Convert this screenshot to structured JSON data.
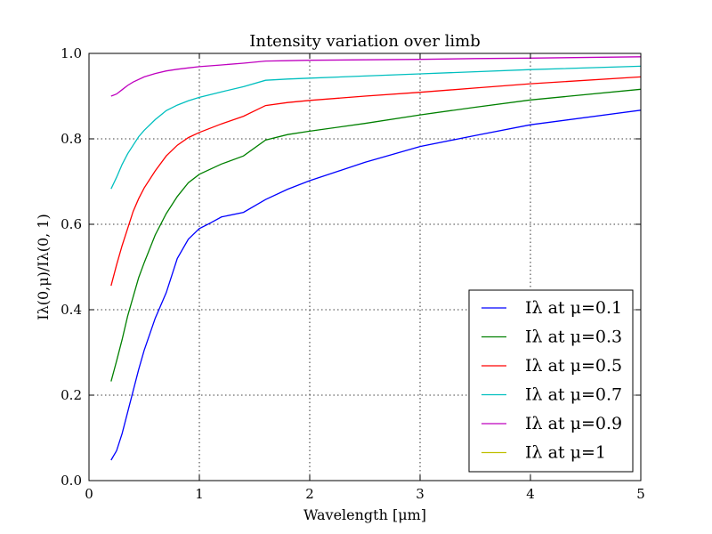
{
  "chart_data": {
    "type": "line",
    "title": "Intensity variation over limb",
    "xlabel": "Wavelength [μm]",
    "ylabel": "Iλ(0,μ)/Iλ(0, 1)",
    "xlim": [
      0,
      5
    ],
    "ylim": [
      0.0,
      1.0
    ],
    "xticks": [
      0,
      1,
      2,
      3,
      4,
      5
    ],
    "xtick_labels": [
      "0",
      "1",
      "2",
      "3",
      "4",
      "5"
    ],
    "yticks": [
      0.0,
      0.2,
      0.4,
      0.6,
      0.8,
      1.0
    ],
    "ytick_labels": [
      "0.0",
      "0.2",
      "0.4",
      "0.6",
      "0.8",
      "1.0"
    ],
    "grid": true,
    "legend_position": "lower-right",
    "series": [
      {
        "name": "Iλ at μ=0.1",
        "color": "#0000ff",
        "x": [
          0.2,
          0.25,
          0.3,
          0.35,
          0.4,
          0.45,
          0.5,
          0.6,
          0.7,
          0.8,
          0.9,
          1.0,
          1.1,
          1.2,
          1.4,
          1.6,
          1.8,
          2.0,
          2.5,
          3.0,
          3.5,
          4.0,
          5.0
        ],
        "y": [
          0.048,
          0.07,
          0.11,
          0.16,
          0.21,
          0.26,
          0.305,
          0.38,
          0.44,
          0.52,
          0.565,
          0.59,
          0.603,
          0.617,
          0.628,
          0.658,
          0.682,
          0.702,
          0.745,
          0.782,
          0.808,
          0.833,
          0.867
        ]
      },
      {
        "name": "Iλ at μ=0.3",
        "color": "#008000",
        "x": [
          0.2,
          0.25,
          0.3,
          0.35,
          0.4,
          0.45,
          0.5,
          0.6,
          0.7,
          0.8,
          0.9,
          1.0,
          1.2,
          1.4,
          1.6,
          1.8,
          2.0,
          2.5,
          3.0,
          3.5,
          4.0,
          5.0
        ],
        "y": [
          0.232,
          0.28,
          0.33,
          0.385,
          0.43,
          0.475,
          0.51,
          0.575,
          0.625,
          0.665,
          0.697,
          0.717,
          0.741,
          0.76,
          0.797,
          0.81,
          0.818,
          0.836,
          0.856,
          0.874,
          0.891,
          0.916
        ]
      },
      {
        "name": "Iλ at μ=0.5",
        "color": "#ff0000",
        "x": [
          0.2,
          0.25,
          0.3,
          0.35,
          0.4,
          0.45,
          0.5,
          0.6,
          0.7,
          0.8,
          0.9,
          1.0,
          1.2,
          1.4,
          1.6,
          1.8,
          2.0,
          2.5,
          3.0,
          3.5,
          4.0,
          5.0
        ],
        "y": [
          0.456,
          0.505,
          0.55,
          0.59,
          0.63,
          0.66,
          0.685,
          0.725,
          0.76,
          0.785,
          0.803,
          0.815,
          0.835,
          0.853,
          0.878,
          0.885,
          0.89,
          0.9,
          0.909,
          0.919,
          0.929,
          0.945
        ]
      },
      {
        "name": "Iλ at μ=0.7",
        "color": "#00bfbf",
        "x": [
          0.2,
          0.25,
          0.3,
          0.35,
          0.4,
          0.45,
          0.5,
          0.6,
          0.7,
          0.8,
          0.9,
          1.0,
          1.2,
          1.4,
          1.6,
          1.8,
          2.0,
          2.5,
          3.0,
          3.5,
          4.0,
          5.0
        ],
        "y": [
          0.683,
          0.71,
          0.74,
          0.765,
          0.785,
          0.805,
          0.82,
          0.845,
          0.866,
          0.879,
          0.889,
          0.897,
          0.91,
          0.922,
          0.937,
          0.94,
          0.942,
          0.947,
          0.952,
          0.957,
          0.962,
          0.97
        ]
      },
      {
        "name": "Iλ at μ=0.9",
        "color": "#bf00bf",
        "x": [
          0.2,
          0.25,
          0.3,
          0.35,
          0.4,
          0.5,
          0.6,
          0.7,
          0.8,
          0.9,
          1.0,
          1.2,
          1.4,
          1.6,
          1.8,
          2.0,
          2.5,
          3.0,
          3.5,
          4.0,
          5.0
        ],
        "y": [
          0.9,
          0.905,
          0.915,
          0.925,
          0.933,
          0.945,
          0.953,
          0.959,
          0.963,
          0.966,
          0.969,
          0.973,
          0.977,
          0.982,
          0.983,
          0.984,
          0.985,
          0.986,
          0.988,
          0.989,
          0.992
        ]
      },
      {
        "name": "Iλ at μ=1",
        "color": "#bfbf00",
        "x": [],
        "y": []
      }
    ]
  }
}
